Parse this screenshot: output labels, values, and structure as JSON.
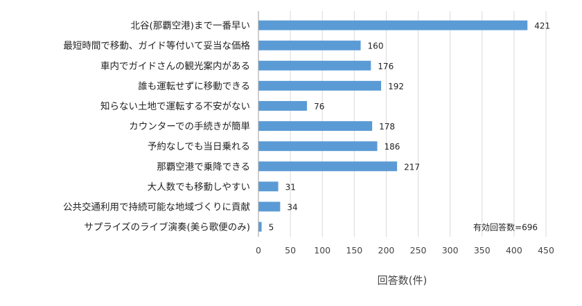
{
  "chart_data": {
    "type": "bar",
    "orientation": "horizontal",
    "categories": [
      "北谷(那覇空港)まで一番早い",
      "最短時間で移動、ガイド等付いて妥当な価格",
      "車内でガイドさんの観光案内がある",
      "誰も運転せずに移動できる",
      "知らない土地で運転する不安がない",
      "カウンターでの手続きが簡単",
      "予約なしでも当日乗れる",
      "那覇空港で乗降できる",
      "大人数でも移動しやすい",
      "公共交通利用で持続可能な地域づくりに貢献",
      "サプライズのライブ演奏(美ら歌便のみ)"
    ],
    "values": [
      421,
      160,
      176,
      192,
      76,
      178,
      186,
      217,
      31,
      34,
      5
    ],
    "xlabel": "回答数(件)",
    "xlim": [
      0,
      450
    ],
    "xticks": [
      0,
      50,
      100,
      150,
      200,
      250,
      300,
      350,
      400,
      450
    ],
    "grid": true,
    "bar_color": "#5b9bd5",
    "annotation": "有効回答数=696"
  }
}
